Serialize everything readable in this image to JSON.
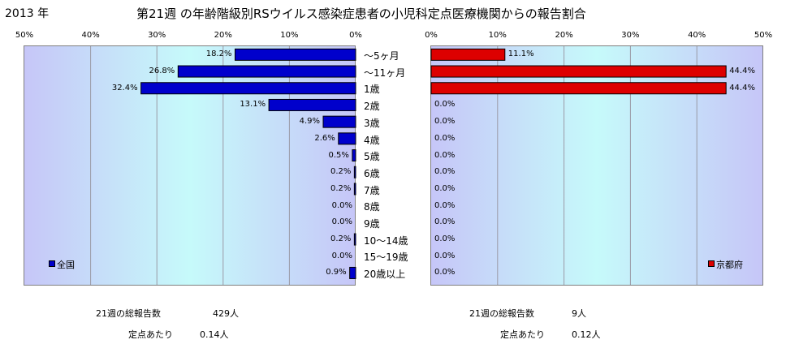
{
  "header": {
    "year": "2013 年",
    "title": "第21週 の年齢階級別RSウイルス感染症患者の小児科定点医療機関からの報告割合"
  },
  "chart_data": [
    {
      "type": "bar",
      "orientation": "horizontal",
      "direction": "right-to-left",
      "legend": "全国",
      "legend_position": "bottom-left",
      "color": "#0000cc",
      "xlim": [
        0,
        50
      ],
      "ticks": [
        "50%",
        "40%",
        "30%",
        "20%",
        "10%",
        "0%"
      ],
      "grid": true,
      "categories": [
        "～5ヶ月",
        "～11ヶ月",
        "1歳",
        "2歳",
        "3歳",
        "4歳",
        "5歳",
        "6歳",
        "7歳",
        "8歳",
        "9歳",
        "10～14歳",
        "15～19歳",
        "20歳以上"
      ],
      "values": [
        18.2,
        26.8,
        32.4,
        13.1,
        4.9,
        2.6,
        0.5,
        0.2,
        0.2,
        0.0,
        0.0,
        0.2,
        0.0,
        0.9
      ],
      "labels": [
        "18.2%",
        "26.8%",
        "32.4%",
        "13.1%",
        "4.9%",
        "2.6%",
        "0.5%",
        "0.2%",
        "0.2%",
        "0.0%",
        "0.0%",
        "0.2%",
        "0.0%",
        "0.9%"
      ]
    },
    {
      "type": "bar",
      "orientation": "horizontal",
      "direction": "left-to-right",
      "legend": "京都府",
      "legend_position": "bottom-right",
      "color": "#dd0000",
      "xlim": [
        0,
        50
      ],
      "ticks": [
        "0%",
        "10%",
        "20%",
        "30%",
        "40%",
        "50%"
      ],
      "grid": true,
      "categories": [
        "～5ヶ月",
        "～11ヶ月",
        "1歳",
        "2歳",
        "3歳",
        "4歳",
        "5歳",
        "6歳",
        "7歳",
        "8歳",
        "9歳",
        "10～14歳",
        "15～19歳",
        "20歳以上"
      ],
      "values": [
        11.1,
        44.4,
        44.4,
        0,
        0,
        0,
        0,
        0,
        0,
        0,
        0,
        0,
        0,
        0
      ],
      "labels": [
        "11.1%",
        "44.4%",
        "44.4%",
        "0.0%",
        "0.0%",
        "0.0%",
        "0.0%",
        "0.0%",
        "0.0%",
        "0.0%",
        "0.0%",
        "0.0%",
        "0.0%",
        "0.0%"
      ]
    }
  ],
  "footer": {
    "left": {
      "reports_label": "21週の総報告数",
      "reports_value": "429人",
      "per_label": "定点あたり",
      "per_value": "0.14人"
    },
    "right": {
      "reports_label": "21週の総報告数",
      "reports_value": "9人",
      "per_label": "定点あたり",
      "per_value": "0.12人"
    }
  }
}
